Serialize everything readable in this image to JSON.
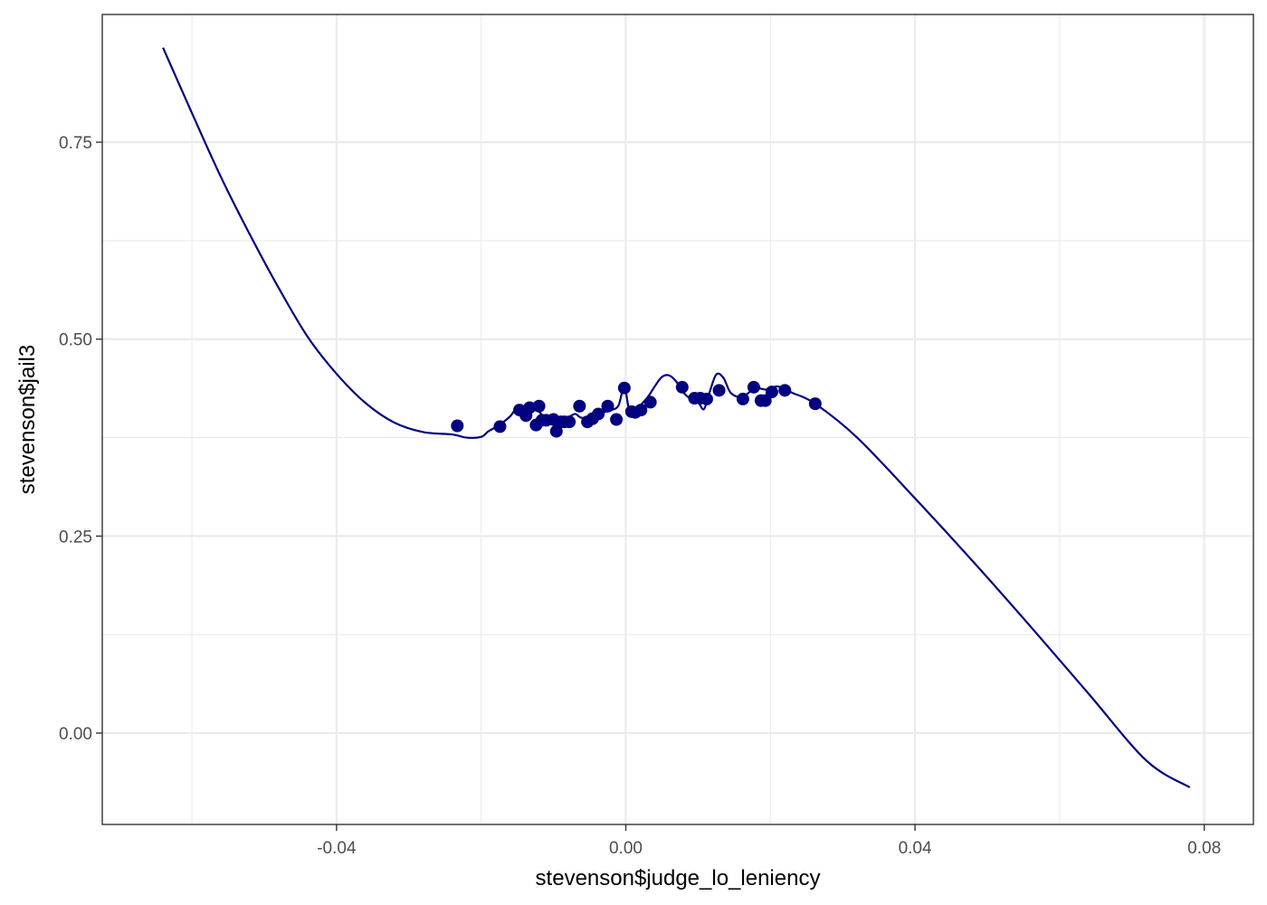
{
  "chart_data": {
    "type": "scatter",
    "xlabel": "stevenson$judge_lo_leniency",
    "ylabel": "stevenson$jail3",
    "xlim": [
      -0.0724,
      0.0868
    ],
    "ylim": [
      -0.116,
      0.9121
    ],
    "grid": true,
    "x_ticks": [
      -0.04,
      0.0,
      0.04,
      0.08
    ],
    "x_tick_labels": [
      "-0.04",
      "0.00",
      "0.04",
      "0.08"
    ],
    "x_minor_ticks": [
      -0.06,
      -0.02,
      0.02,
      0.06
    ],
    "y_ticks": [
      0.0,
      0.25,
      0.5,
      0.75
    ],
    "y_tick_labels": [
      "0.00",
      "0.25",
      "0.50",
      "0.75"
    ],
    "y_minor_ticks": [
      0.125,
      0.375,
      0.625
    ],
    "colors": {
      "series": "#000080",
      "grid": "#ebebeb",
      "panel_border": "#333333",
      "tick": "#333333"
    },
    "series": [
      {
        "kind": "points",
        "x": [
          -0.0233,
          -0.0174,
          -0.0147,
          -0.0138,
          -0.0133,
          -0.0124,
          -0.012,
          -0.0116,
          -0.011,
          -0.01,
          -0.0096,
          -0.009,
          -0.0085,
          -0.0078,
          -0.0064,
          -0.0053,
          -0.0046,
          -0.0038,
          -0.0025,
          -0.0013,
          -0.0002,
          0.0008,
          0.0013,
          0.0021,
          0.0034,
          0.0078,
          0.0095,
          0.0103,
          0.0112,
          0.0129,
          0.0162,
          0.0177,
          0.0187,
          0.0193,
          0.0202,
          0.022,
          0.0262
        ],
        "y": [
          0.39,
          0.389,
          0.41,
          0.403,
          0.413,
          0.391,
          0.415,
          0.397,
          0.397,
          0.398,
          0.383,
          0.395,
          0.395,
          0.395,
          0.415,
          0.395,
          0.399,
          0.405,
          0.415,
          0.398,
          0.438,
          0.408,
          0.407,
          0.41,
          0.42,
          0.439,
          0.425,
          0.425,
          0.424,
          0.435,
          0.424,
          0.439,
          0.422,
          0.422,
          0.433,
          0.435,
          0.418
        ]
      },
      {
        "kind": "line",
        "x": [
          -0.064,
          -0.06,
          -0.056,
          -0.052,
          -0.048,
          -0.044,
          -0.04,
          -0.036,
          -0.032,
          -0.028,
          -0.024,
          -0.022,
          -0.02,
          -0.019,
          -0.0175,
          -0.016,
          -0.015,
          -0.014,
          -0.013,
          -0.012,
          -0.011,
          -0.01,
          -0.009,
          -0.008,
          -0.007,
          -0.006,
          -0.004,
          -0.002,
          -0.001,
          -0.0002,
          0.0005,
          0.0015,
          0.003,
          0.004,
          0.005,
          0.006,
          0.007,
          0.008,
          0.009,
          0.01,
          0.0108,
          0.0115,
          0.0125,
          0.0135,
          0.0145,
          0.016,
          0.017,
          0.018,
          0.0195,
          0.021,
          0.023,
          0.0262,
          0.032,
          0.04,
          0.048,
          0.056,
          0.064,
          0.072,
          0.078
        ],
        "y": [
          0.87,
          0.787,
          0.706,
          0.633,
          0.565,
          0.503,
          0.456,
          0.419,
          0.394,
          0.382,
          0.379,
          0.375,
          0.376,
          0.383,
          0.391,
          0.402,
          0.413,
          0.408,
          0.414,
          0.408,
          0.397,
          0.391,
          0.394,
          0.4,
          0.405,
          0.4,
          0.405,
          0.41,
          0.416,
          0.44,
          0.41,
          0.412,
          0.426,
          0.44,
          0.452,
          0.454,
          0.446,
          0.432,
          0.424,
          0.42,
          0.411,
          0.43,
          0.455,
          0.451,
          0.432,
          0.426,
          0.432,
          0.438,
          0.436,
          0.44,
          0.432,
          0.418,
          0.375,
          0.298,
          0.218,
          0.135,
          0.05,
          -0.035,
          -0.069
        ]
      }
    ]
  }
}
